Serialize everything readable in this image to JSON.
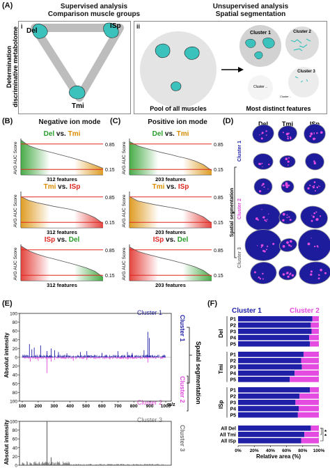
{
  "panelA": {
    "label": "(A)",
    "left_title_1": "Supervised analysis",
    "left_title_2": "Comparison muscle groups",
    "right_title_1": "Unsupervised analysis",
    "right_title_2": "Spatial segmentation",
    "sub_i": "i",
    "sub_ii": "ii",
    "side_label_1": "Determination",
    "side_label_2": "discriminative metabolome",
    "del": "Del",
    "isp": "ISp",
    "tmi": "Tmi",
    "pool_label": "Pool of all muscles",
    "features_label": "Most distinct features",
    "cluster1": "Cluster 1",
    "cluster2": "Cluster 2",
    "cluster3": "Cluster 3",
    "cluster_small_a": "Cluster ..",
    "cluster_small_b": "Cluster .."
  },
  "panelB": {
    "label": "(B)",
    "title": "Negative ion mode",
    "ylabel": "AVG AUC Score",
    "hi": "0.85",
    "lo": "0.15",
    "charts": [
      {
        "a": "Del",
        "vs": " vs. ",
        "b": "Tmi",
        "features": "312 features"
      },
      {
        "a": "Tmi",
        "vs": " vs. ",
        "b": "ISp",
        "features": "312 features"
      },
      {
        "a": "ISp",
        "vs": " vs. ",
        "b": "Del",
        "features": "312 features"
      }
    ]
  },
  "panelC": {
    "label": "(C)",
    "title": "Positive ion mode",
    "ylabel": "AVG AUC Score",
    "hi": "0.85",
    "lo": "0.15",
    "charts": [
      {
        "a": "Del",
        "vs": " vs. ",
        "b": "Tmi",
        "features": "203 features"
      },
      {
        "a": "Tmi",
        "vs": " vs. ",
        "b": "ISp",
        "features": "203 features"
      },
      {
        "a": "ISp",
        "vs": " vs. ",
        "b": "Del",
        "features": "203 features"
      }
    ]
  },
  "panelD": {
    "label": "(D)",
    "cols": [
      "Del",
      "Tmi",
      "ISp"
    ],
    "side_label": "Spatial segmentation",
    "cluster1": "Cluster 1",
    "cluster2": "Cluster 2",
    "cluster3": "Cluster 3"
  },
  "panelE": {
    "label": "(E)",
    "ylabel": "Absolut intensity",
    "xlabel": "m/z",
    "cluster1": "Cluster 1",
    "cluster2": "Cluster 2",
    "cluster3": "Cluster 3",
    "side_label": "Spatial segmentation",
    "yticks_top": [
      "100",
      "80",
      "60",
      "40",
      "20",
      "0",
      "20",
      "40",
      "60",
      "80",
      "100"
    ],
    "xticks": [
      "100",
      "200",
      "300",
      "400",
      "500",
      "600",
      "700",
      "800",
      "900",
      "1000"
    ],
    "yticks_bottom": [
      "100",
      "80",
      "60",
      "40",
      "20",
      "0"
    ]
  },
  "panelF": {
    "label": "(F)",
    "legend1": "Cluster 1",
    "legend2": "Cluster 2",
    "xlabel": "Relative area (%)",
    "xticks": [
      "0%",
      "20%",
      "40%",
      "60%",
      "80%",
      "100%"
    ],
    "sig": "*",
    "groups": [
      {
        "name": "Del",
        "rows": [
          {
            "label": "P1",
            "value": 0.92
          },
          {
            "label": "P2",
            "value": 0.9
          },
          {
            "label": "P3",
            "value": 0.91
          },
          {
            "label": "P4",
            "value": 0.88
          },
          {
            "label": "P5",
            "value": 0.89
          }
        ]
      },
      {
        "name": "Tmi",
        "rows": [
          {
            "label": "P1",
            "value": 0.81
          },
          {
            "label": "P2",
            "value": 0.78
          },
          {
            "label": "P3",
            "value": 0.79
          },
          {
            "label": "P4",
            "value": 0.7
          },
          {
            "label": "P5",
            "value": 0.64
          }
        ]
      },
      {
        "name": "ISp",
        "rows": [
          {
            "label": "P1",
            "value": 0.89
          },
          {
            "label": "P2",
            "value": 0.76
          },
          {
            "label": "P3",
            "value": 0.71
          },
          {
            "label": "P4",
            "value": 0.75
          },
          {
            "label": "P5",
            "value": 0.74
          }
        ]
      }
    ],
    "totals": [
      {
        "label": "All Del",
        "value": 0.9
      },
      {
        "label": "All Tmi",
        "value": 0.82
      },
      {
        "label": "All ISp",
        "value": 0.78
      }
    ]
  },
  "colors": {
    "cluster1": "#1f1fa8",
    "cluster2": "#e44be0",
    "cluster3": "#777777",
    "del": "#2a9d2a",
    "tmi": "#d98c00",
    "isp": "#e0261f",
    "muscle": "#3cc2bc"
  },
  "chart_data": [
    {
      "type": "area",
      "title": "Del vs. Tmi",
      "ylabel": "AVG AUC Score",
      "features": 312,
      "y": [
        0.96,
        0.8,
        0.72,
        0.66,
        0.6,
        0.54,
        0.48,
        0.42,
        0.35,
        0.27,
        0.18
      ]
    },
    {
      "type": "area",
      "title": "Tmi vs. ISp",
      "ylabel": "AVG AUC Score",
      "features": 312,
      "y": [
        0.86,
        0.75,
        0.69,
        0.64,
        0.59,
        0.55,
        0.51,
        0.45,
        0.38,
        0.28,
        0.12
      ]
    },
    {
      "type": "area",
      "title": "ISp vs. Del",
      "ylabel": "AVG AUC Score",
      "features": 312,
      "y": [
        0.96,
        0.82,
        0.73,
        0.66,
        0.6,
        0.54,
        0.48,
        0.42,
        0.35,
        0.26,
        0.1
      ]
    },
    {
      "type": "area",
      "title": "Del vs. Tmi",
      "ylabel": "AVG AUC Score",
      "features": 203,
      "y": [
        0.92,
        0.8,
        0.73,
        0.67,
        0.61,
        0.56,
        0.5,
        0.45,
        0.38,
        0.28,
        0.12
      ]
    },
    {
      "type": "area",
      "title": "Tmi vs. ISp",
      "ylabel": "AVG AUC Score",
      "features": 203,
      "y": [
        0.86,
        0.74,
        0.69,
        0.64,
        0.6,
        0.56,
        0.52,
        0.47,
        0.4,
        0.3,
        0.13
      ]
    },
    {
      "type": "area",
      "title": "ISp vs. Del",
      "ylabel": "AVG AUC Score",
      "features": 203,
      "y": [
        0.93,
        0.81,
        0.74,
        0.68,
        0.62,
        0.57,
        0.51,
        0.45,
        0.38,
        0.28,
        0.12
      ]
    },
    {
      "type": "bar",
      "title": "Relative area (%)",
      "series": [
        {
          "name": "Cluster 1"
        },
        {
          "name": "Cluster 2"
        }
      ]
    }
  ]
}
